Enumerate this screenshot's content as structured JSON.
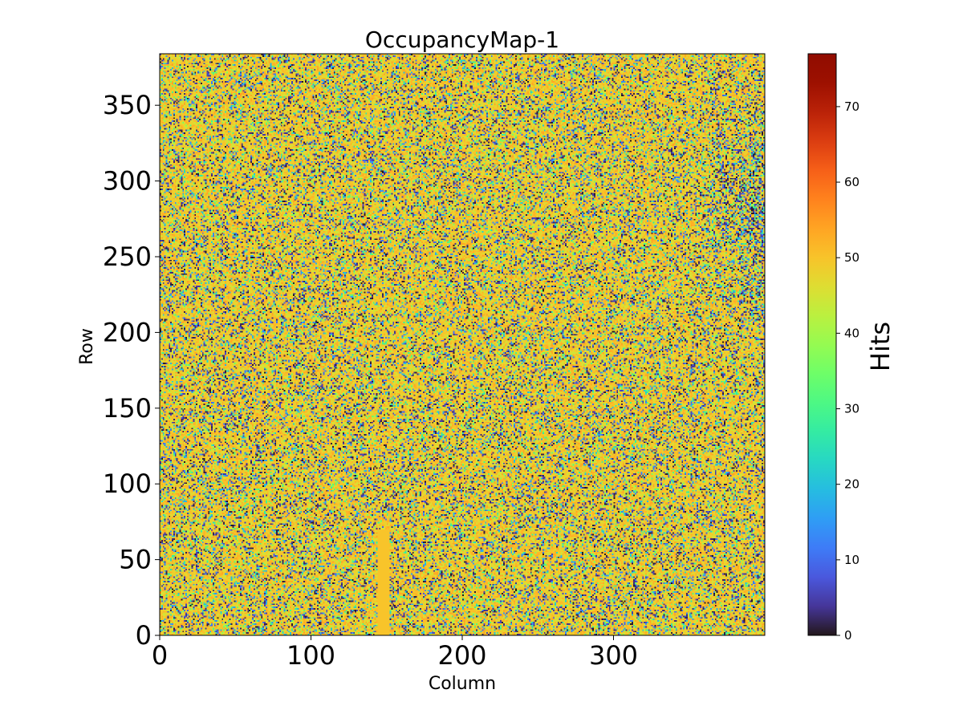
{
  "chart_data": {
    "type": "heatmap",
    "title": "OccupancyMap-1",
    "xlabel": "Column",
    "ylabel": "Row",
    "xlim": [
      0,
      400
    ],
    "ylim": [
      0,
      384
    ],
    "x_ticks": [
      0,
      100,
      200,
      300
    ],
    "y_ticks": [
      0,
      50,
      100,
      150,
      200,
      250,
      300,
      350
    ],
    "colorbar": {
      "label": "Hits",
      "colormap": "turbo",
      "range": [
        0,
        77
      ],
      "ticks": [
        0,
        10,
        20,
        30,
        40,
        50,
        60,
        70
      ]
    },
    "typical_value": 50,
    "pattern": "noisy per-pixel hit counts, mostly 45–55 with scattered low (0–30) pixels",
    "features": [
      {
        "description": "uniform band at typical value",
        "columns": [
          144,
          152
        ],
        "rows": [
          0,
          70
        ],
        "value": 50
      },
      {
        "description": "depleted region with many low-count pixels",
        "columns": [
          345,
          400
        ],
        "rows": [
          190,
          350
        ]
      }
    ]
  }
}
